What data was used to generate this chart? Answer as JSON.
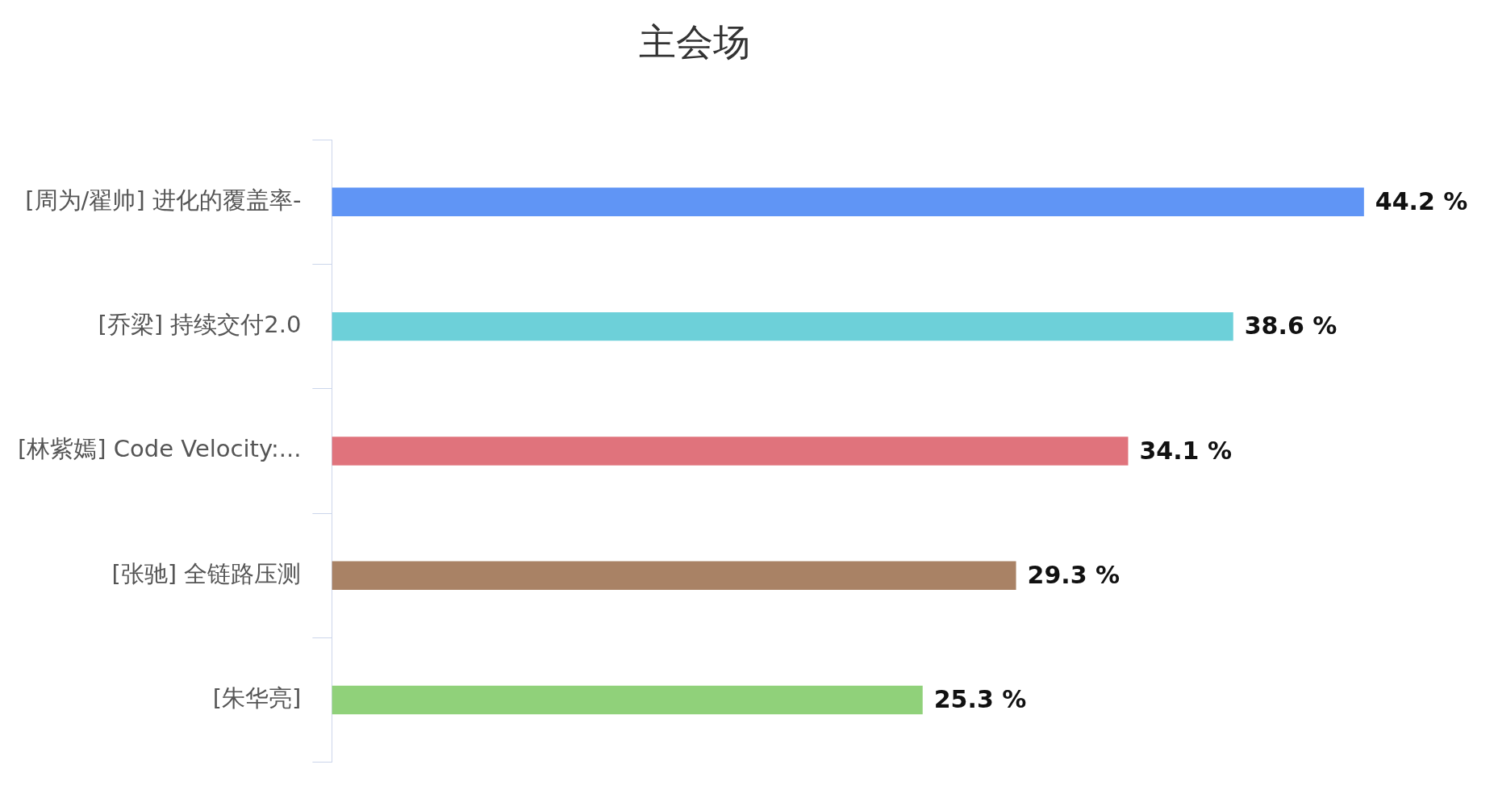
{
  "chart_data": {
    "type": "bar",
    "orientation": "horizontal",
    "title": "主会场",
    "categories": [
      "[周为/翟帅] 进化的覆盖率-",
      "[乔梁] 持续交付2.0",
      "[林紫嫣] Code Velocity:...",
      "[张驰] 全链路压测",
      "[朱华亮]"
    ],
    "values": [
      44.2,
      38.6,
      34.1,
      29.3,
      25.3
    ],
    "colors": [
      "#6095f5",
      "#6dd0d9",
      "#e0737c",
      "#a98265",
      "#90d17a"
    ],
    "value_labels": [
      "44.2 %",
      "38.6 %",
      "34.1 %",
      "29.3 %",
      "25.3 %"
    ],
    "legend": false
  }
}
